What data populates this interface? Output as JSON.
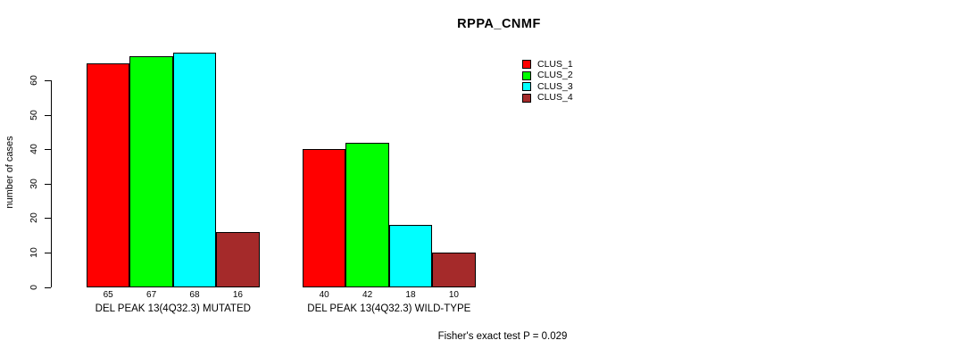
{
  "chart_data": {
    "type": "bar",
    "title": "RPPA_CNMF",
    "ylabel": "number of cases",
    "xlabel": "",
    "footer": "Fisher's exact test P = 0.029",
    "categories": [
      "DEL PEAK 13(4Q32.3) MUTATED",
      "DEL PEAK 13(4Q32.3) WILD-TYPE"
    ],
    "series": [
      {
        "name": "CLUS_1",
        "color": "#FF0000",
        "values": [
          65,
          40
        ]
      },
      {
        "name": "CLUS_2",
        "color": "#00FF00",
        "values": [
          67,
          42
        ]
      },
      {
        "name": "CLUS_3",
        "color": "#00FFFF",
        "values": [
          68,
          18
        ]
      },
      {
        "name": "CLUS_4",
        "color": "#A52A2A",
        "values": [
          16,
          10
        ]
      }
    ],
    "bar_value_labels_shown": true,
    "y_ticks": [
      0,
      10,
      20,
      30,
      40,
      50,
      60
    ],
    "ylim": [
      0,
      60
    ],
    "grid": false,
    "legend_position": "top-right",
    "legend_entries": [
      "CLUS_1",
      "CLUS_2",
      "CLUS_3",
      "CLUS_4"
    ],
    "background_color": "#FFFFFF",
    "axis_color": "#000000",
    "text_color": "#000000"
  }
}
